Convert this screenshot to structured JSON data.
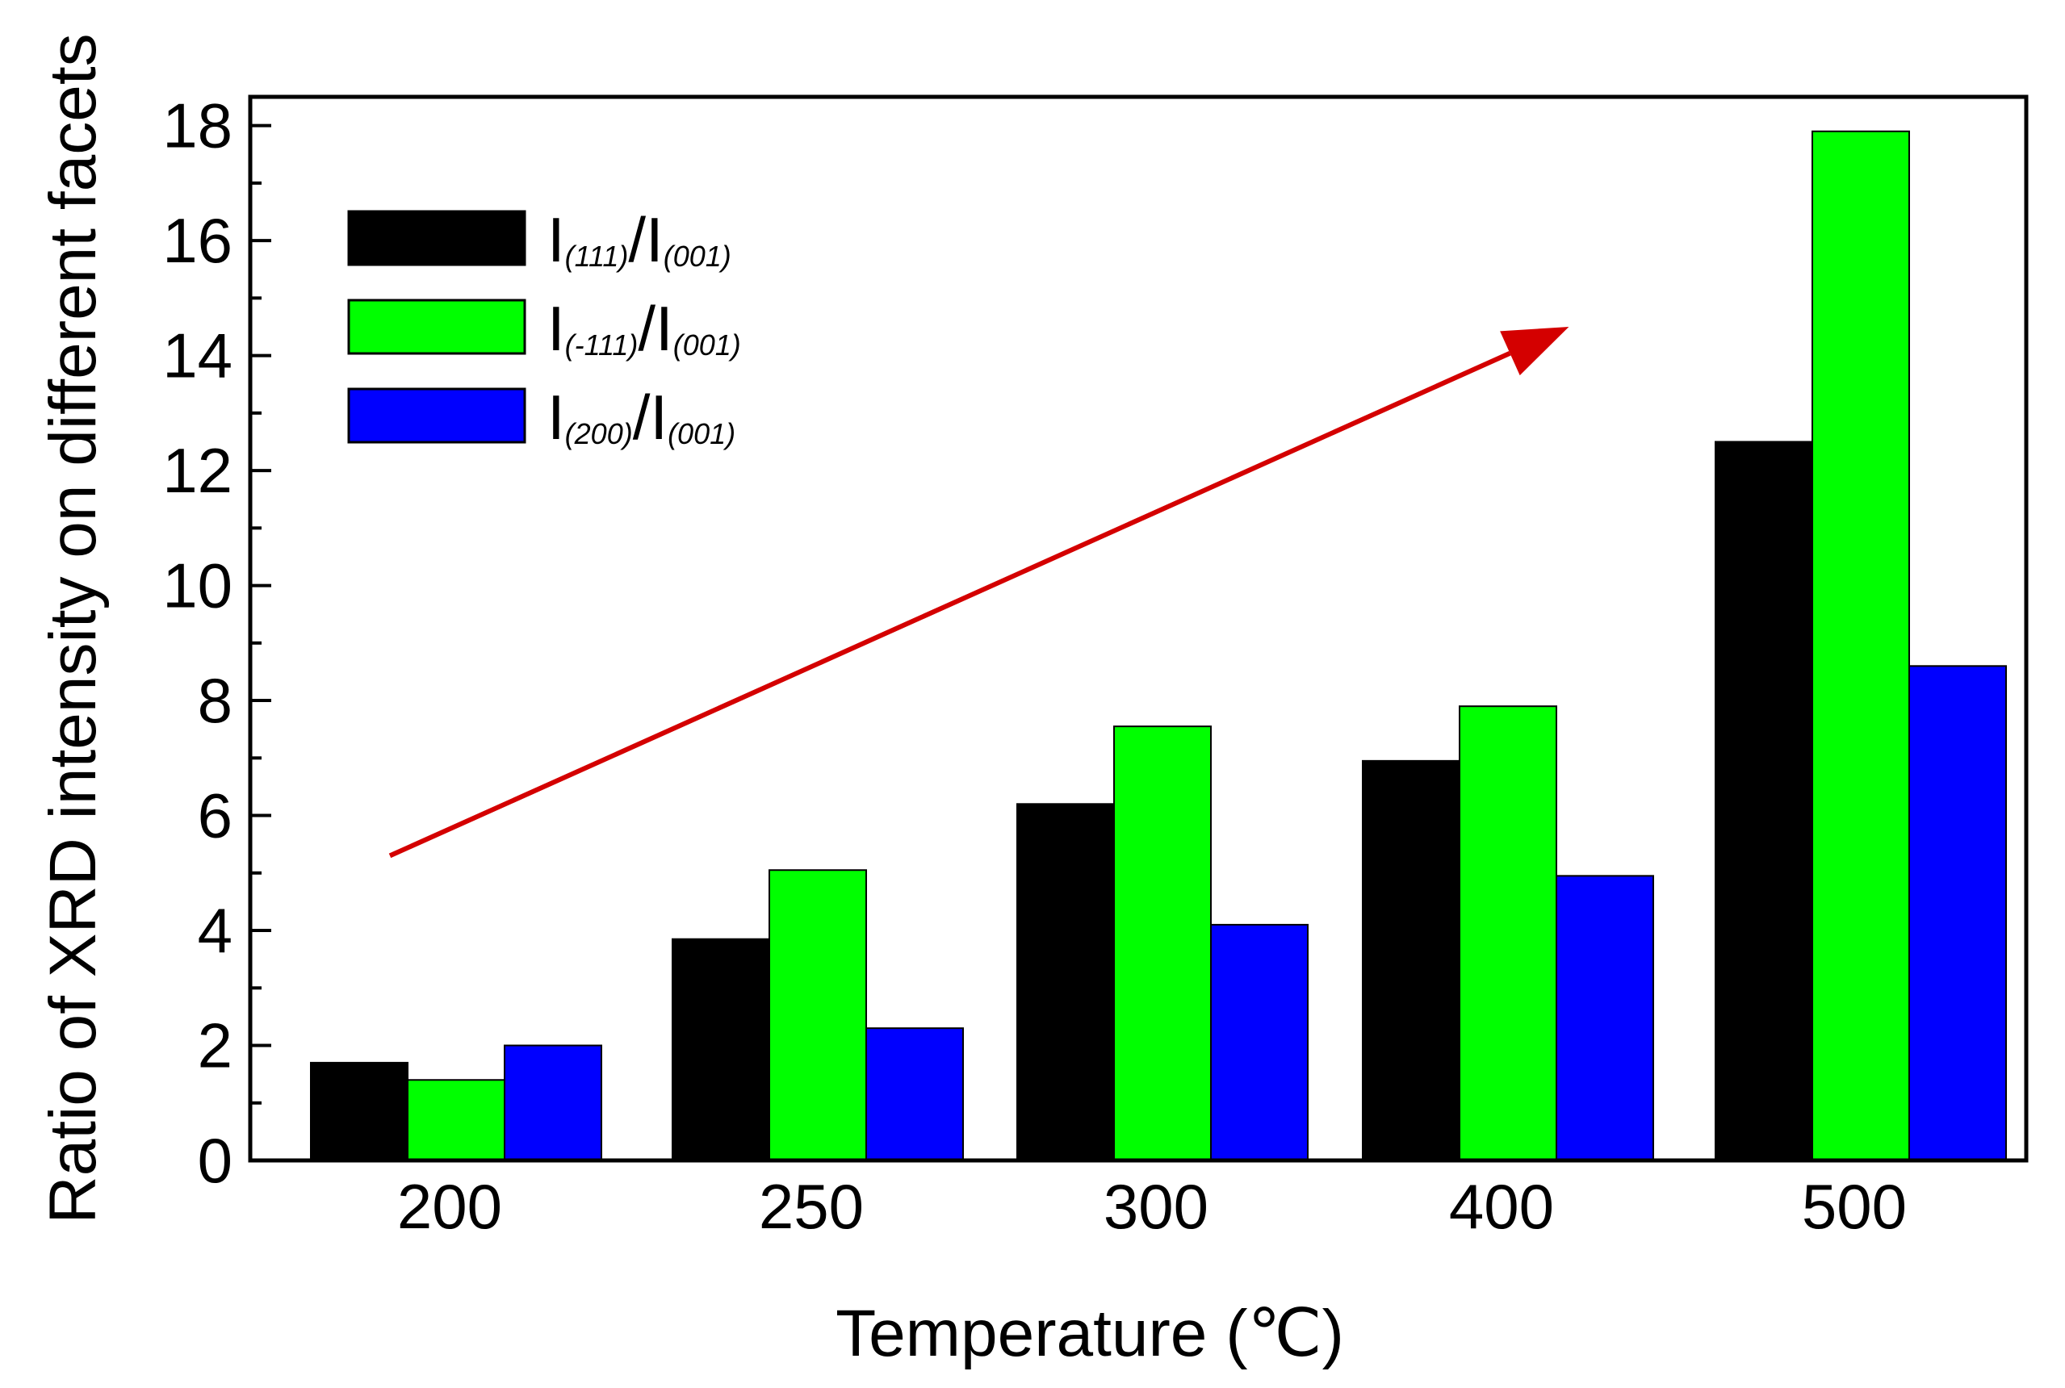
{
  "chart_data": {
    "type": "bar",
    "title": "",
    "xlabel": "Temperature (℃)",
    "ylabel": "Ratio of XRD intensity on different facets",
    "categories": [
      "200",
      "250",
      "300",
      "400",
      "500"
    ],
    "ylim": [
      0,
      18.5
    ],
    "yticks": [
      0,
      2,
      4,
      6,
      8,
      10,
      12,
      14,
      16,
      18
    ],
    "yticks_minor_step": 1,
    "grid": false,
    "legend_position": "top-left",
    "series": [
      {
        "name": "I(111)/I(001)",
        "legend": {
          "a": "I",
          "a_sub": "(111)",
          "slash": "/",
          "b": "I",
          "b_sub": "(001)"
        },
        "color": "#000000",
        "values": [
          1.7,
          3.85,
          6.2,
          6.95,
          12.5
        ]
      },
      {
        "name": "I(-111)/I(001)",
        "legend": {
          "a": "I",
          "a_sub": "(-111)",
          "slash": "/",
          "b": "I",
          "b_sub": "(001)"
        },
        "color": "#00ff00",
        "values": [
          1.4,
          5.05,
          7.55,
          7.9,
          17.9
        ]
      },
      {
        "name": "I(200)/I(001)",
        "legend": {
          "a": "I",
          "a_sub": "(200)",
          "slash": "/",
          "b": "I",
          "b_sub": "(001)"
        },
        "color": "#0000ff",
        "values": [
          2.0,
          2.3,
          4.1,
          4.95,
          8.6
        ]
      }
    ],
    "annotations": [
      {
        "type": "arrow",
        "description": "increasing trend",
        "color": "#d40000",
        "from": {
          "category_index": 0,
          "y": 5.3
        },
        "to": {
          "category_index": 3.2,
          "y": 14.5
        }
      }
    ]
  }
}
